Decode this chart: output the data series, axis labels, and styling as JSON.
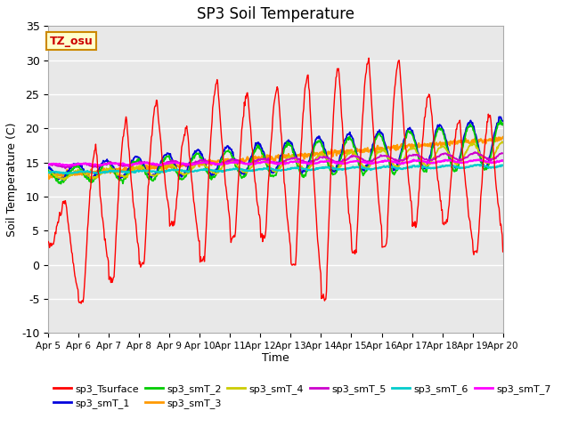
{
  "title": "SP3 Soil Temperature",
  "xlabel": "Time",
  "ylabel": "Soil Temperature (C)",
  "ylim": [
    -10,
    35
  ],
  "tz_label": "TZ_osu",
  "plot_bg_color": "#e8e8e8",
  "fig_bg_color": "#ffffff",
  "series_colors": {
    "sp3_Tsurface": "#ff0000",
    "sp3_smT_1": "#0000dd",
    "sp3_smT_2": "#00cc00",
    "sp3_smT_3": "#ff9900",
    "sp3_smT_4": "#cccc00",
    "sp3_smT_5": "#cc00cc",
    "sp3_smT_6": "#00cccc",
    "sp3_smT_7": "#ff00ff"
  },
  "xtick_labels": [
    "Apr 5",
    "Apr 6",
    "Apr 7",
    "Apr 8",
    "Apr 9",
    "Apr 10",
    "Apr 11",
    "Apr 12",
    "Apr 13",
    "Apr 14",
    "Apr 15",
    "Apr 16",
    "Apr 17",
    "Apr 18",
    "Apr 19",
    "Apr 20"
  ],
  "ytick_labels": [
    -10,
    -5,
    0,
    5,
    10,
    15,
    20,
    25,
    30,
    35
  ],
  "n_days": 15,
  "n_per_day": 48
}
